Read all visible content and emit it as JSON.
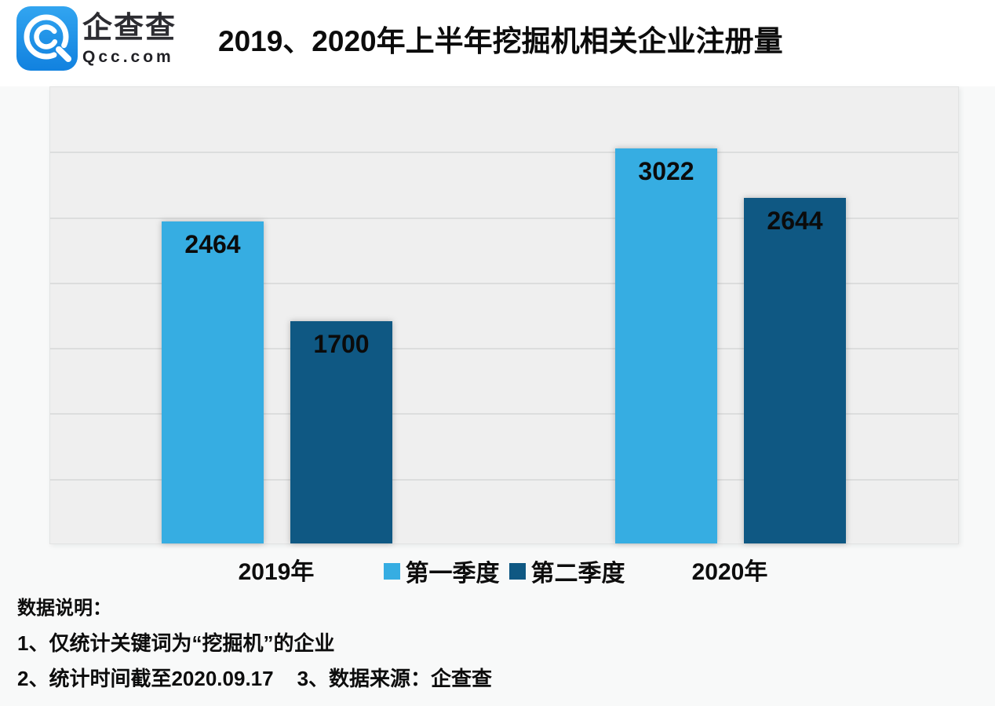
{
  "brand": {
    "name": "企查查",
    "domain": "Qcc.com",
    "logo_icon": "qcc-magnifier-icon",
    "logo_blue_top": "#32a5f0",
    "logo_blue_bottom": "#1181df"
  },
  "header": {
    "title": "2019、2020年上半年挖掘机相关企业注册量"
  },
  "chart_data": {
    "type": "bar",
    "title": "2019、2020年上半年挖掘机相关企业注册量",
    "categories": [
      "2019年",
      "2020年"
    ],
    "series": [
      {
        "name": "第一季度",
        "color": "#36ade2",
        "values": [
          2464,
          3022
        ]
      },
      {
        "name": "第二季度",
        "color": "#0f5883",
        "values": [
          1700,
          2644
        ]
      }
    ],
    "ylim": [
      0,
      3500
    ],
    "gridline_step": 500,
    "grid": true,
    "y_axis_tick_labels_visible": false,
    "legend_position": "bottom-center",
    "value_label_position": "inside-top",
    "plot_background": "#efefef",
    "gridline_color": "#dcdddd"
  },
  "notes": {
    "heading": "数据说明：",
    "line1": "1、仅统计关键词为“挖掘机”的企业",
    "line2": "2、统计时间截至2020.09.17",
    "line3": "3、数据来源：企查查"
  }
}
